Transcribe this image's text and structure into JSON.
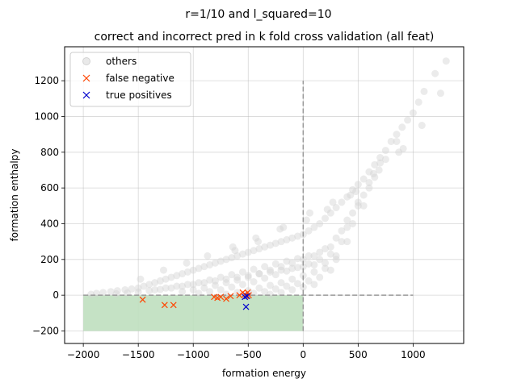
{
  "chart_data": {
    "type": "scatter",
    "suptitle": "r=1/10 and l_squared=10",
    "title": "correct and incorrect pred in k fold cross validation (all feat)",
    "xlabel": "formation energy",
    "ylabel": "formation enthalpy",
    "xlim": [
      -2170,
      1460
    ],
    "ylim": [
      -270,
      1390
    ],
    "xticks": [
      -2000,
      -1500,
      -1000,
      -500,
      0,
      500,
      1000
    ],
    "yticks": [
      -200,
      0,
      200,
      400,
      600,
      800,
      1000,
      1200
    ],
    "grid": true,
    "legend_position": "upper-left",
    "shaded_region": {
      "x": [
        -2000,
        0
      ],
      "y": [
        -200,
        0
      ],
      "color": "#bfdfbf"
    },
    "reference_lines": [
      {
        "orientation": "horizontal",
        "y": 0,
        "x_range": [
          -2000,
          1000
        ],
        "color": "#999999",
        "style": "dashed"
      },
      {
        "orientation": "vertical",
        "x": 0,
        "y_range": [
          -200,
          1200
        ],
        "color": "#999999",
        "style": "dashed"
      }
    ],
    "series": [
      {
        "name": "others",
        "marker": "circle",
        "color": "#d3d3d3",
        "description_hint": "dense cloud: lower edge follows y≈0 for x<0 and y≈x for x>0, upper edge rises from ~0 at x=-1900 to ~1300 at x=1300",
        "x": [
          -1930,
          -1880,
          -1820,
          -1750,
          -1690,
          -1620,
          -1560,
          -1500,
          -1450,
          -1400,
          -1350,
          -1300,
          -1250,
          -1200,
          -1150,
          -1100,
          -1050,
          -1000,
          -950,
          -900,
          -850,
          -800,
          -750,
          -700,
          -650,
          -600,
          -550,
          -500,
          -450,
          -400,
          -350,
          -300,
          -250,
          -200,
          -150,
          -100,
          -50,
          0,
          50,
          100,
          150,
          200,
          250,
          300,
          350,
          400,
          450,
          500,
          550,
          600,
          650,
          700,
          750,
          800,
          850,
          900,
          950,
          1000,
          1050,
          1100,
          1200,
          1300,
          -1700,
          -1600,
          -1500,
          -1400,
          -1300,
          -1200,
          -1100,
          -1000,
          -900,
          -800,
          -700,
          -600,
          -500,
          -400,
          -300,
          -200,
          -100,
          0,
          100,
          200,
          300,
          400,
          500,
          600,
          -1350,
          -1250,
          -1150,
          -1050,
          -950,
          -850,
          -750,
          -650,
          -550,
          -450,
          -350,
          -250,
          -150,
          -50,
          50,
          150,
          250,
          350,
          450,
          550,
          650,
          750,
          850,
          -1100,
          -1000,
          -900,
          -800,
          -700,
          -600,
          -500,
          -400,
          -300,
          -200,
          -100,
          0,
          100,
          200,
          300,
          400,
          500,
          600,
          700,
          -950,
          -850,
          -750,
          -650,
          -550,
          -450,
          -350,
          -250,
          -150,
          -50,
          50,
          150,
          250,
          350,
          450,
          550,
          -700,
          -600,
          -500,
          -400,
          -300,
          -200,
          -100,
          0,
          100,
          200,
          300,
          400,
          -450,
          -350,
          -250,
          -150,
          -50,
          50,
          150,
          250,
          -300,
          -200,
          -100,
          0,
          100,
          -1480,
          -1270,
          -1060,
          -870,
          -640,
          -430,
          -210,
          30,
          220,
          430,
          640,
          870,
          1080,
          1250,
          -620,
          -410,
          -180,
          60,
          270,
          480,
          690,
          910
        ],
        "y": [
          5,
          10,
          15,
          20,
          25,
          30,
          35,
          40,
          50,
          60,
          70,
          80,
          90,
          100,
          110,
          120,
          130,
          140,
          150,
          160,
          170,
          180,
          190,
          200,
          210,
          220,
          230,
          240,
          250,
          260,
          270,
          280,
          290,
          300,
          310,
          320,
          330,
          340,
          360,
          380,
          400,
          430,
          460,
          490,
          520,
          550,
          590,
          620,
          650,
          690,
          730,
          770,
          810,
          860,
          900,
          940,
          980,
          1020,
          1080,
          1140,
          1240,
          1310,
          8,
          12,
          18,
          25,
          32,
          40,
          50,
          60,
          70,
          80,
          90,
          100,
          110,
          120,
          130,
          140,
          150,
          160,
          170,
          180,
          220,
          380,
          500,
          600,
          30,
          40,
          50,
          60,
          70,
          85,
          100,
          115,
          130,
          145,
          160,
          175,
          190,
          205,
          220,
          240,
          270,
          360,
          460,
          560,
          660,
          760,
          860,
          20,
          30,
          40,
          55,
          70,
          85,
          100,
          120,
          140,
          160,
          180,
          200,
          220,
          260,
          320,
          420,
          520,
          630,
          740,
          10,
          20,
          30,
          45,
          60,
          75,
          95,
          115,
          135,
          155,
          175,
          200,
          230,
          300,
          400,
          500,
          5,
          15,
          25,
          40,
          55,
          70,
          90,
          110,
          130,
          150,
          200,
          300,
          10,
          20,
          35,
          50,
          65,
          80,
          100,
          140,
          5,
          15,
          30,
          45,
          60,
          90,
          140,
          180,
          220,
          270,
          320,
          370,
          420,
          480,
          560,
          680,
          800,
          950,
          1130,
          250,
          300,
          380,
          460,
          520,
          580,
          700,
          820
        ]
      },
      {
        "name": "false negative",
        "marker": "x",
        "color": "#ff4500",
        "x": [
          -1460,
          -1260,
          -1180,
          -810,
          -780,
          -750,
          -700,
          -660,
          -580,
          -550,
          -530,
          -520,
          -505,
          -495
        ],
        "y": [
          -25,
          -55,
          -55,
          -10,
          -15,
          -10,
          -20,
          -5,
          0,
          15,
          5,
          -5,
          15,
          0
        ]
      },
      {
        "name": "true positives",
        "marker": "x",
        "color": "#0000cd",
        "x": [
          -530,
          -520,
          -510
        ],
        "y": [
          -10,
          -65,
          -5
        ]
      }
    ]
  }
}
